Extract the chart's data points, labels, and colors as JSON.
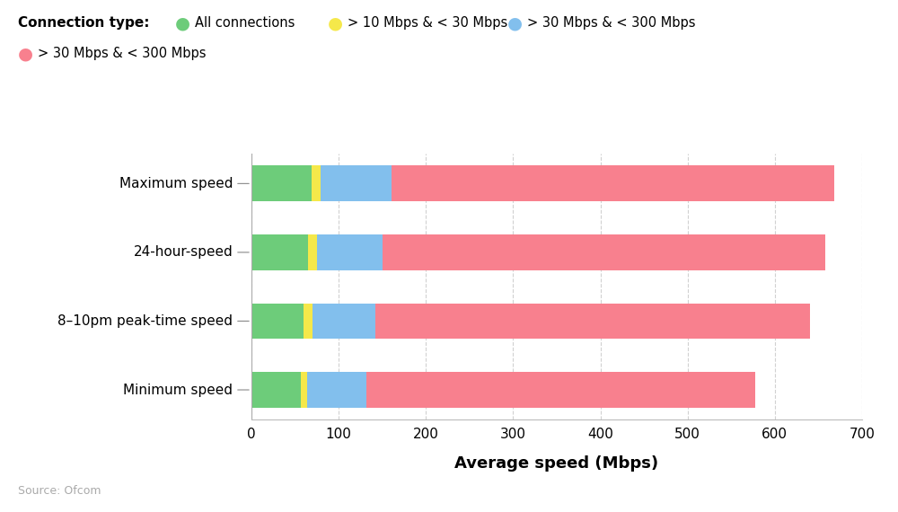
{
  "categories": [
    "Maximum speed",
    "24-hour-speed",
    "8–10pm peak-time speed",
    "Minimum speed"
  ],
  "segments": {
    "All connections": [
      69,
      65,
      60,
      57
    ],
    "> 10 Mbps & < 30 Mbps": [
      10,
      10,
      10,
      7
    ],
    "> 30 Mbps & < 300 Mbps (blue)": [
      82,
      75,
      72,
      68
    ],
    "> 30 Mbps & < 300 Mbps (pink)": [
      507,
      508,
      498,
      446
    ]
  },
  "colors": {
    "All connections": "#6dcc7a",
    "> 10 Mbps & < 30 Mbps": "#f5e84a",
    "> 30 Mbps & < 300 Mbps (blue)": "#82bfed",
    "> 30 Mbps & < 300 Mbps (pink)": "#f8808e"
  },
  "legend_items_row1": [
    {
      "label": "All connections",
      "color": "#6dcc7a"
    },
    {
      "label": "> 10 Mbps & < 30 Mbps",
      "color": "#f5e84a"
    },
    {
      "label": "> 30 Mbps & < 300 Mbps",
      "color": "#82bfed"
    }
  ],
  "legend_items_row2": [
    {
      "label": "> 30 Mbps & < 300 Mbps",
      "color": "#f8808e"
    }
  ],
  "legend_title": "Connection type:",
  "xlabel": "Average speed (Mbps)",
  "xlim": [
    0,
    700
  ],
  "xticks": [
    0,
    100,
    200,
    300,
    400,
    500,
    600,
    700
  ],
  "source": "Source: Ofcom",
  "background_color": "#ffffff",
  "grid_color": "#cccccc",
  "bar_height": 0.52
}
